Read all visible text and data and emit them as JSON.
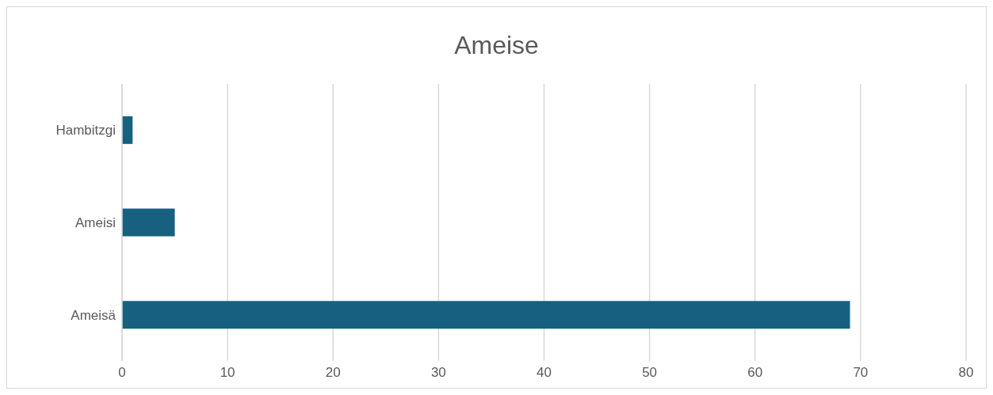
{
  "chart_data": {
    "type": "bar",
    "orientation": "horizontal",
    "title": "Ameise",
    "categories": [
      "Hambitzgi",
      "Ameisi",
      "Ameisä"
    ],
    "values": [
      1,
      5,
      69
    ],
    "color": "#17607f",
    "xlim": [
      0,
      80
    ],
    "xticks": [
      0,
      10,
      20,
      30,
      40,
      50,
      60,
      70,
      80
    ],
    "grid": "x"
  }
}
